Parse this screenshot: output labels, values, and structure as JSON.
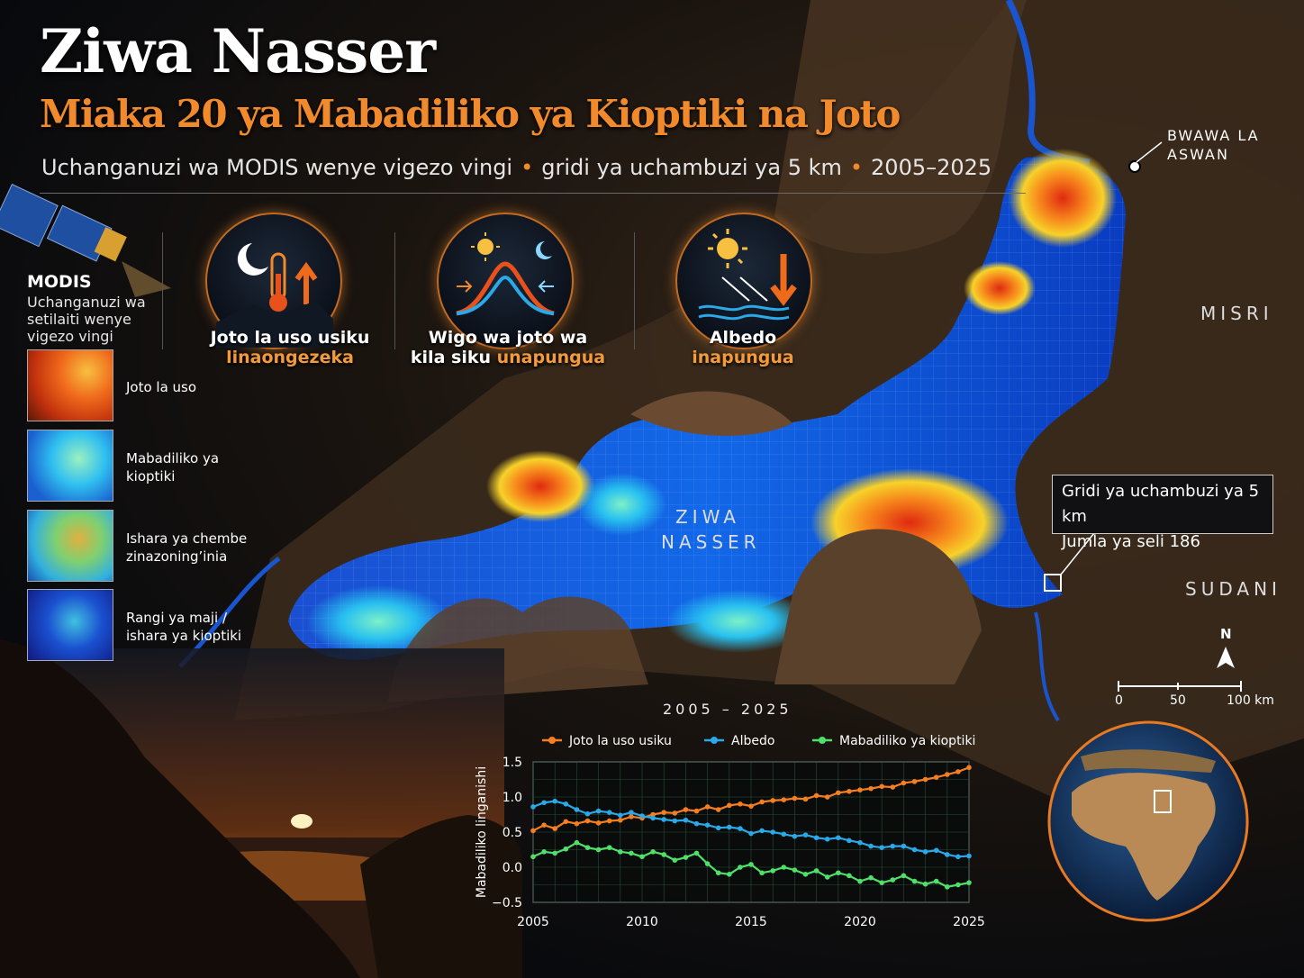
{
  "header": {
    "title": "Ziwa Nasser",
    "subtitle": "Miaka 20 ya Mabadiliko ya Kioptiki na Joto",
    "desc_parts": [
      "Uchanganuzi wa MODIS wenye vigezo vingi",
      "gridi ya uchambuzi ya 5 km",
      "2005–2025"
    ],
    "separator": "•"
  },
  "features": [
    {
      "icon": "moon-thermometer-up-icon",
      "line1": "Joto la uso usiku",
      "line2": "linaongezeka"
    },
    {
      "icon": "sun-moon-curve-icon",
      "line1": "Wigo wa joto wa",
      "line2a": "kila siku ",
      "line2b": "unapungua"
    },
    {
      "icon": "sun-reflection-down-icon",
      "line1": "Albedo",
      "line2": "inapungua"
    }
  ],
  "sidebar": {
    "heading": "MODIS",
    "text": "Uchanganuzi wa setilaiti wenye vigezo vingi",
    "items": [
      {
        "label": "Joto la uso"
      },
      {
        "label": "Mabadiliko ya kioptiki"
      },
      {
        "label": "Ishara ya chembe zinazoning’inia"
      },
      {
        "label": "Rangi ya maji / ishara ya kioptiki"
      }
    ]
  },
  "map": {
    "lake_label_1": "ZIWA",
    "lake_label_2": "NASSER",
    "dam_label_1": "BWAWA LA",
    "dam_label_2": "ASWAN",
    "country_1": "MISRI",
    "country_2": "SUDANI",
    "callout_1": "Gridi ya uchambuzi ya 5 km",
    "callout_2": "Jumla ya seli 186",
    "north": "N",
    "scale_ticks": [
      "0",
      "50",
      "100 km"
    ]
  },
  "colors": {
    "accent": "#f08a2c",
    "series_orange": "#f57f20",
    "series_blue": "#2aa8e8",
    "series_green": "#4fe06a"
  },
  "chart_data": {
    "type": "line",
    "title": "2005 – 2025",
    "xlabel": "",
    "ylabel": "Mabadiliko linganishi",
    "xlim": [
      2005,
      2025
    ],
    "ylim": [
      -0.5,
      1.5
    ],
    "x_ticks": [
      2005,
      2010,
      2015,
      2020,
      2025
    ],
    "y_ticks": [
      1.5,
      1.0,
      0.5,
      0.0,
      -0.5
    ],
    "y_tick_labels": [
      "1.5",
      "1.0",
      "0.5",
      "0.0",
      "−0.5"
    ],
    "grid": true,
    "legend": "top",
    "x": [
      2005,
      2005.5,
      2006,
      2006.5,
      2007,
      2007.5,
      2008,
      2008.5,
      2009,
      2009.5,
      2010,
      2010.5,
      2011,
      2011.5,
      2012,
      2012.5,
      2013,
      2013.5,
      2014,
      2014.5,
      2015,
      2015.5,
      2016,
      2016.5,
      2017,
      2017.5,
      2018,
      2018.5,
      2019,
      2019.5,
      2020,
      2020.5,
      2021,
      2021.5,
      2022,
      2022.5,
      2023,
      2023.5,
      2024,
      2024.5,
      2025
    ],
    "series": [
      {
        "name": "Joto la uso usiku",
        "color": "#f57f20",
        "values": [
          0.52,
          0.6,
          0.55,
          0.65,
          0.62,
          0.66,
          0.63,
          0.66,
          0.67,
          0.72,
          0.7,
          0.75,
          0.78,
          0.77,
          0.82,
          0.8,
          0.86,
          0.82,
          0.88,
          0.9,
          0.87,
          0.93,
          0.95,
          0.96,
          0.98,
          0.97,
          1.02,
          1.0,
          1.06,
          1.08,
          1.1,
          1.12,
          1.15,
          1.14,
          1.2,
          1.22,
          1.25,
          1.28,
          1.32,
          1.36,
          1.42
        ]
      },
      {
        "name": "Albedo",
        "color": "#2aa8e8",
        "values": [
          0.86,
          0.92,
          0.94,
          0.9,
          0.82,
          0.76,
          0.8,
          0.78,
          0.74,
          0.78,
          0.73,
          0.7,
          0.68,
          0.66,
          0.67,
          0.62,
          0.6,
          0.56,
          0.57,
          0.55,
          0.48,
          0.52,
          0.5,
          0.47,
          0.44,
          0.46,
          0.42,
          0.4,
          0.42,
          0.38,
          0.35,
          0.3,
          0.28,
          0.3,
          0.3,
          0.25,
          0.22,
          0.24,
          0.18,
          0.15,
          0.16
        ]
      },
      {
        "name": "Mabadiliko ya kioptiki",
        "color": "#4fe06a",
        "values": [
          0.15,
          0.22,
          0.2,
          0.26,
          0.35,
          0.28,
          0.25,
          0.28,
          0.22,
          0.2,
          0.15,
          0.22,
          0.18,
          0.1,
          0.14,
          0.2,
          0.05,
          -0.08,
          -0.1,
          0.0,
          0.04,
          -0.08,
          -0.05,
          0.0,
          -0.04,
          -0.1,
          -0.05,
          -0.14,
          -0.08,
          -0.12,
          -0.2,
          -0.15,
          -0.22,
          -0.18,
          -0.12,
          -0.2,
          -0.24,
          -0.2,
          -0.28,
          -0.25,
          -0.22
        ]
      }
    ]
  }
}
